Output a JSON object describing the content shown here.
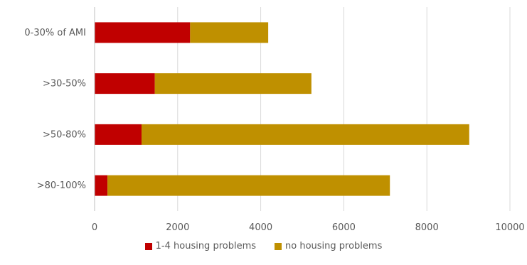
{
  "chart_data": {
    "type": "bar",
    "orientation": "horizontal",
    "stacked": true,
    "categories": [
      "0-30% of AMI",
      ">30-50%",
      ">50-80%",
      ">80-100%"
    ],
    "series": [
      {
        "name": "1-4 housing problems",
        "color": "#c00000",
        "values": [
          2300,
          1450,
          1130,
          310
        ]
      },
      {
        "name": "no housing problems",
        "color": "#bf9000",
        "values": [
          1880,
          3770,
          7890,
          6800
        ]
      }
    ],
    "xlim": [
      0,
      10000
    ],
    "xticks": [
      0,
      2000,
      4000,
      6000,
      8000,
      10000
    ],
    "grid": true,
    "legend_position": "bottom"
  }
}
